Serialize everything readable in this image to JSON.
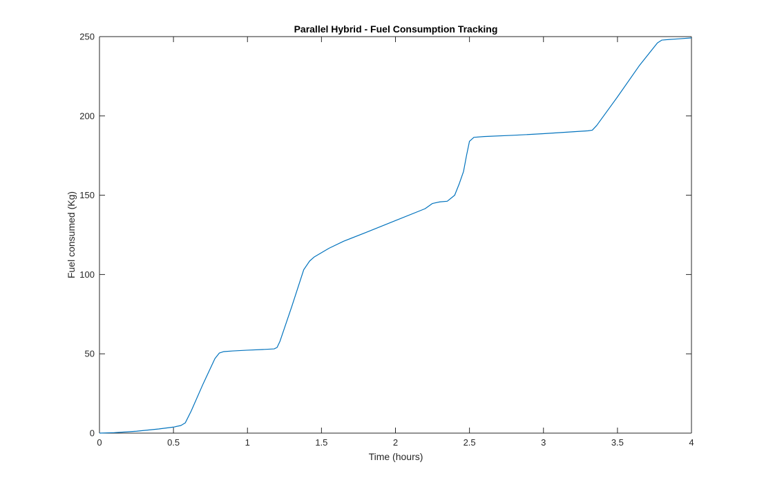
{
  "chart_data": {
    "type": "line",
    "title": "Parallel Hybrid - Fuel Consumption Tracking",
    "xlabel": "Time (hours)",
    "ylabel": "Fuel consumed (Kg)",
    "xlim": [
      0,
      4
    ],
    "ylim": [
      0,
      250
    ],
    "xticks": [
      0,
      0.5,
      1,
      1.5,
      2,
      2.5,
      3,
      3.5,
      4
    ],
    "xtick_labels": [
      "0",
      "0.5",
      "1",
      "1.5",
      "2",
      "2.5",
      "3",
      "3.5",
      "4"
    ],
    "yticks": [
      0,
      50,
      100,
      150,
      200,
      250
    ],
    "ytick_labels": [
      "0",
      "50",
      "100",
      "150",
      "200",
      "250"
    ],
    "grid": false,
    "series": [
      {
        "color": "#0072BD",
        "x": [
          0,
          0.1,
          0.25,
          0.4,
          0.5,
          0.55,
          0.58,
          0.62,
          0.7,
          0.78,
          0.81,
          0.84,
          0.9,
          1.0,
          1.1,
          1.18,
          1.2,
          1.22,
          1.3,
          1.38,
          1.42,
          1.45,
          1.55,
          1.65,
          1.8,
          2.0,
          2.2,
          2.25,
          2.3,
          2.35,
          2.4,
          2.43,
          2.46,
          2.48,
          2.5,
          2.53,
          2.6,
          2.8,
          3.0,
          3.2,
          3.3,
          3.33,
          3.36,
          3.5,
          3.65,
          3.77,
          3.8,
          3.85,
          3.9,
          4.0
        ],
        "y": [
          0,
          0.3,
          1.2,
          2.6,
          3.8,
          4.8,
          6.5,
          14,
          31,
          47,
          50.5,
          51.4,
          51.8,
          52.3,
          52.7,
          53.1,
          54,
          58,
          80,
          103,
          108.5,
          111,
          116.5,
          121,
          126.5,
          134,
          141.5,
          144.8,
          145.8,
          146.2,
          150,
          157,
          165,
          175,
          184,
          186.5,
          187,
          187.8,
          188.8,
          190,
          190.6,
          191,
          194,
          212,
          232,
          246,
          247.8,
          248.2,
          248.5,
          249.2
        ]
      }
    ]
  }
}
